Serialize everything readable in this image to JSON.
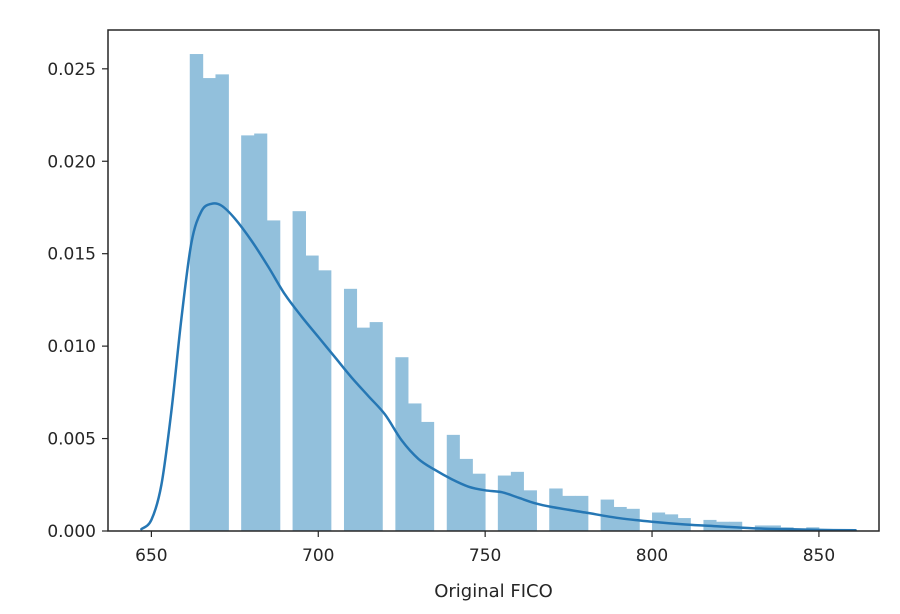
{
  "chart_data": {
    "type": "histogram",
    "xlabel": "Original FICO",
    "ylabel": "",
    "title": "",
    "xlim": [
      637,
      868
    ],
    "ylim": [
      0,
      0.0271
    ],
    "xticks": [
      650,
      700,
      750,
      800,
      850
    ],
    "xtick_labels": [
      "650",
      "700",
      "750",
      "800",
      "850"
    ],
    "yticks": [
      0.0,
      0.005,
      0.01,
      0.015,
      0.02,
      0.025
    ],
    "ytick_labels": [
      "0.000",
      "0.005",
      "0.010",
      "0.015",
      "0.020",
      "0.025"
    ],
    "grid": false,
    "legend": "none",
    "colors": {
      "bars": "#92c0dc",
      "kde": "#2677b4",
      "axes": "#262626"
    },
    "histogram": {
      "bin_edges": [
        661.5,
        665.4,
        669.2,
        673.1,
        676.9,
        680.8,
        684.6,
        688.5,
        692.3,
        696.2,
        700.0,
        703.8,
        707.7,
        711.5,
        715.4,
        719.2,
        723.1,
        726.9,
        730.8,
        734.6,
        738.5,
        742.3,
        746.2,
        750.0,
        753.8,
        757.7,
        761.5,
        765.4,
        769.2,
        773.1,
        776.9,
        780.8,
        784.6,
        788.5,
        792.3,
        796.2,
        800.0,
        803.8,
        807.7,
        811.5,
        815.4,
        819.2,
        823.1,
        826.9,
        830.8,
        834.6,
        838.5,
        842.3,
        846.2,
        850.0,
        853.8,
        857.7,
        861.5
      ],
      "densities": [
        0.0258,
        0.0245,
        0.0247,
        0.0,
        0.0214,
        0.0215,
        0.0168,
        0.0,
        0.0173,
        0.0149,
        0.0141,
        0.0,
        0.0131,
        0.011,
        0.0113,
        0.0,
        0.0094,
        0.0069,
        0.0059,
        0.0,
        0.0052,
        0.0039,
        0.0031,
        0.0,
        0.003,
        0.0032,
        0.0022,
        0.0,
        0.0023,
        0.0019,
        0.0019,
        0.0,
        0.0017,
        0.0013,
        0.0012,
        0.0,
        0.001,
        0.0009,
        0.0007,
        0.0,
        0.0006,
        0.0005,
        0.0005,
        0.0,
        0.0003,
        0.0003,
        0.0002,
        0.0,
        0.0002,
        0.0001,
        0.0001,
        0.0
      ]
    },
    "kde": {
      "x": [
        647,
        650,
        653,
        656,
        659,
        662,
        665,
        668,
        671,
        675,
        680,
        685,
        690,
        695,
        700,
        705,
        710,
        715,
        720,
        725,
        730,
        735,
        740,
        745,
        750,
        755,
        760,
        765,
        770,
        780,
        790,
        800,
        810,
        820,
        830,
        840,
        850,
        861
      ],
      "y": [
        0.0001,
        0.0006,
        0.0025,
        0.0065,
        0.0115,
        0.0156,
        0.0173,
        0.0177,
        0.0176,
        0.0169,
        0.0157,
        0.0143,
        0.0128,
        0.0116,
        0.0105,
        0.0094,
        0.0083,
        0.0073,
        0.0063,
        0.0049,
        0.0039,
        0.0033,
        0.0028,
        0.0024,
        0.0022,
        0.0021,
        0.0018,
        0.0015,
        0.0013,
        0.001,
        0.0007,
        0.0005,
        0.00035,
        0.00025,
        0.00015,
        0.0001,
        6e-05,
        4e-05
      ]
    }
  }
}
